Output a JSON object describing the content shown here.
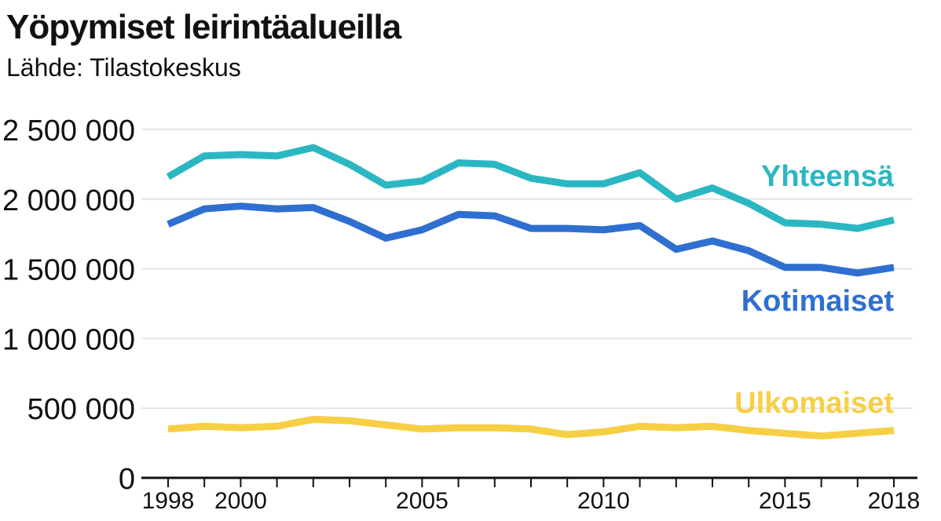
{
  "chart_data": {
    "type": "line",
    "title": "Yöpymiset leirintäalueilla",
    "subtitle": "Lähde: Tilastokeskus",
    "x": [
      1998,
      1999,
      2000,
      2001,
      2002,
      2003,
      2004,
      2005,
      2006,
      2007,
      2008,
      2009,
      2010,
      2011,
      2012,
      2013,
      2014,
      2015,
      2016,
      2017,
      2018
    ],
    "x_ticks": [
      1998,
      2000,
      2005,
      2010,
      2015,
      2018
    ],
    "y_ticks": [
      {
        "value": 0,
        "label": "0"
      },
      {
        "value": 500000,
        "label": "500 000"
      },
      {
        "value": 1000000,
        "label": "1 000 000"
      },
      {
        "value": 1500000,
        "label": "1 500 000"
      },
      {
        "value": 2000000,
        "label": "2 000 000"
      },
      {
        "value": 2500000,
        "label": "2 500 000"
      }
    ],
    "ylim": [
      0,
      2500000
    ],
    "grid": true,
    "series": [
      {
        "name": "Yhteensä",
        "color": "#2bb7c1",
        "values": [
          2160000,
          2310000,
          2320000,
          2310000,
          2370000,
          2250000,
          2100000,
          2130000,
          2260000,
          2250000,
          2150000,
          2110000,
          2110000,
          2190000,
          2000000,
          2080000,
          1970000,
          1830000,
          1820000,
          1790000,
          1850000
        ]
      },
      {
        "name": "Kotimaiset",
        "color": "#2f6fd0",
        "values": [
          1820000,
          1930000,
          1950000,
          1930000,
          1940000,
          1840000,
          1720000,
          1780000,
          1890000,
          1880000,
          1790000,
          1790000,
          1780000,
          1810000,
          1640000,
          1700000,
          1630000,
          1510000,
          1510000,
          1470000,
          1510000
        ]
      },
      {
        "name": "Ulkomaiset",
        "color": "#f7cf44",
        "values": [
          350000,
          370000,
          360000,
          370000,
          420000,
          410000,
          380000,
          350000,
          360000,
          360000,
          350000,
          310000,
          330000,
          370000,
          360000,
          370000,
          340000,
          320000,
          300000,
          320000,
          340000
        ]
      }
    ]
  }
}
